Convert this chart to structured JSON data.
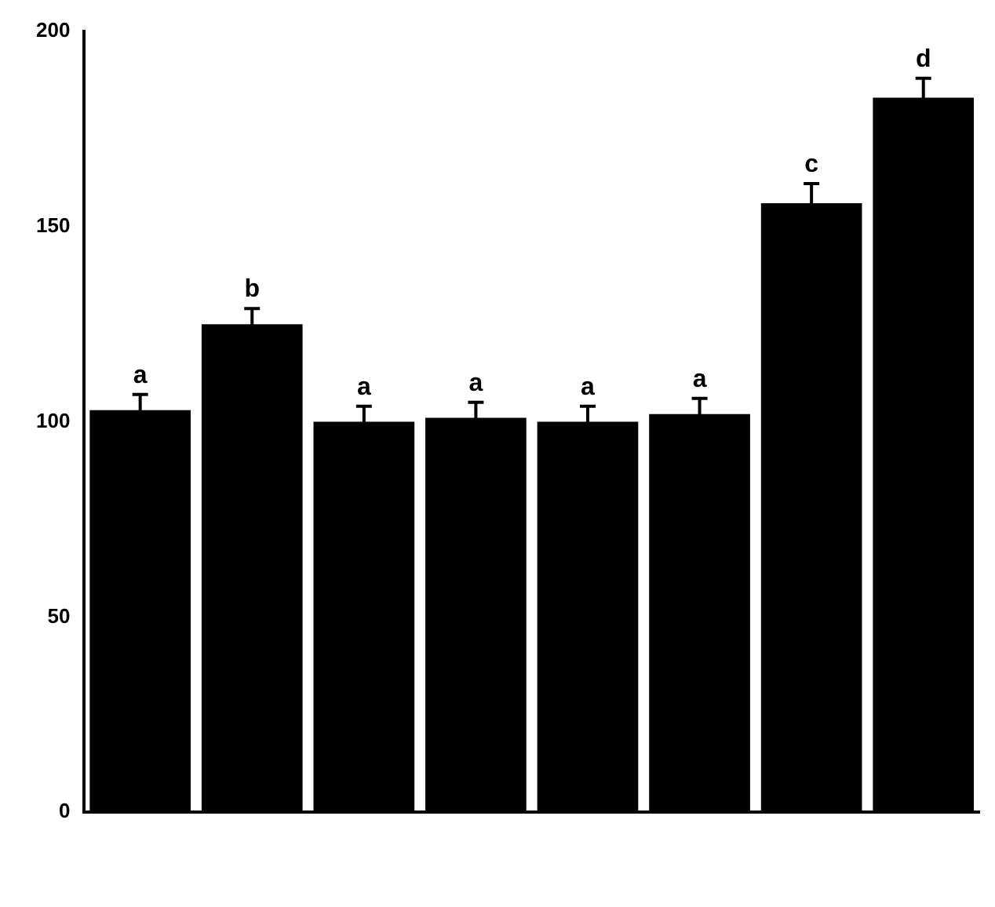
{
  "chart_data": {
    "type": "bar",
    "categories": [
      null,
      null,
      null,
      null,
      null,
      null,
      null,
      null
    ],
    "values": [
      103,
      125,
      100,
      101,
      100,
      102,
      156,
      183
    ],
    "errors": [
      4,
      4,
      4,
      4,
      4,
      4,
      5,
      5
    ],
    "color": "#000000",
    "ylim": [
      0,
      200
    ],
    "yticks": [
      0,
      50,
      100,
      150,
      200
    ],
    "grid": false,
    "legend": false,
    "annotations": [
      "a",
      "b",
      "a",
      "a",
      "a",
      "a",
      "c",
      "d"
    ]
  }
}
